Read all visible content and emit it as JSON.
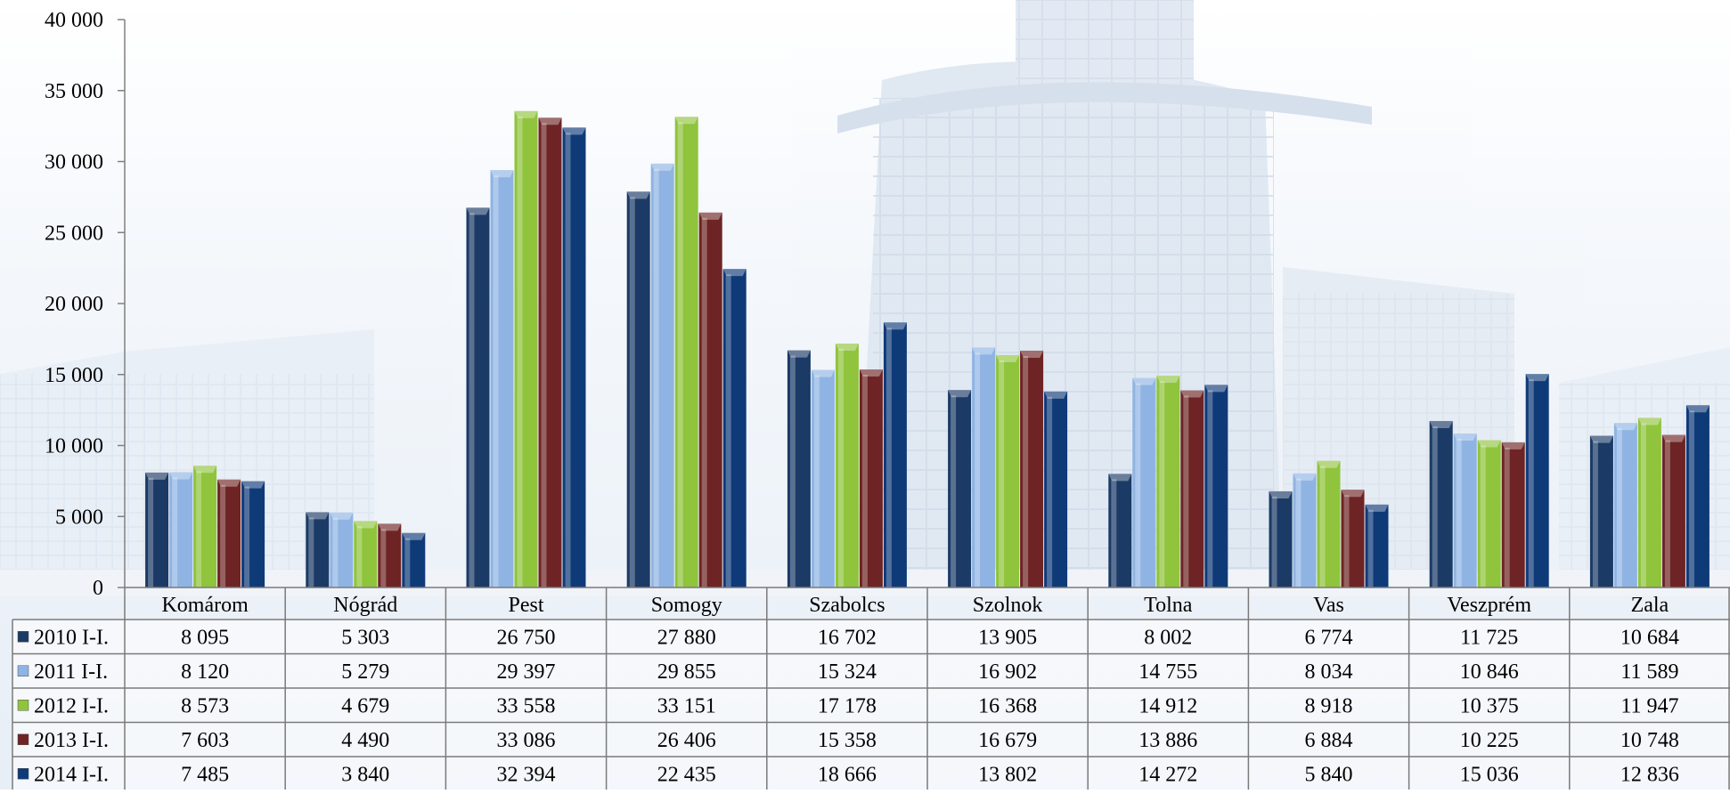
{
  "chart_data": {
    "type": "bar",
    "categories": [
      "Komárom",
      "Nógrád",
      "Pest",
      "Somogy",
      "Szabolcs",
      "Szolnok",
      "Tolna",
      "Vas",
      "Veszprém",
      "Zala"
    ],
    "series": [
      {
        "name": "2010 I-I.",
        "color": "#1b3a66",
        "values": [
          8095,
          5303,
          26750,
          27880,
          16702,
          13905,
          8002,
          6774,
          11725,
          10684
        ]
      },
      {
        "name": "2011 I-I.",
        "color": "#8fb4e3",
        "values": [
          8120,
          5279,
          29397,
          29855,
          15324,
          16902,
          14755,
          8034,
          10846,
          11589
        ]
      },
      {
        "name": "2012 I-I.",
        "color": "#8fc43c",
        "values": [
          8573,
          4679,
          33558,
          33151,
          17178,
          16368,
          14912,
          8918,
          10375,
          11947
        ]
      },
      {
        "name": "2013 I-I.",
        "color": "#6e2424",
        "values": [
          7603,
          4490,
          33086,
          26406,
          15358,
          16679,
          13886,
          6884,
          10225,
          10748
        ]
      },
      {
        "name": "2014 I-I.",
        "color": "#0f3a78",
        "values": [
          7485,
          3840,
          32394,
          22435,
          18666,
          13802,
          14272,
          5840,
          15036,
          12836
        ]
      }
    ],
    "table_values": [
      [
        "8 095",
        "5 303",
        "26 750",
        "27 880",
        "16 702",
        "13 905",
        "8 002",
        "6 774",
        "11 725",
        "10 684"
      ],
      [
        "8 120",
        "5 279",
        "29 397",
        "29 855",
        "15 324",
        "16 902",
        "14 755",
        "8 034",
        "10 846",
        "11 589"
      ],
      [
        "8 573",
        "4 679",
        "33 558",
        "33 151",
        "17 178",
        "16 368",
        "14 912",
        "8 918",
        "10 375",
        "11 947"
      ],
      [
        "7 603",
        "4 490",
        "33 086",
        "26 406",
        "15 358",
        "16 679",
        "13 886",
        "6 884",
        "10 225",
        "10 748"
      ],
      [
        "7 485",
        "3 840",
        "32 394",
        "22 435",
        "18 666",
        "13 802",
        "14 272",
        "5 840",
        "15 036",
        "12 836"
      ]
    ],
    "y_ticks": [
      0,
      5000,
      10000,
      15000,
      20000,
      25000,
      30000,
      35000,
      40000
    ],
    "y_tick_labels": [
      "0",
      "5 000",
      "10 000",
      "15 000",
      "20 000",
      "25 000",
      "30 000",
      "35 000",
      "40 000"
    ],
    "ylim": [
      0,
      40000
    ],
    "grid": false,
    "legend": "data table rows (left)",
    "title": "",
    "xlabel": "",
    "ylabel": "",
    "background": "faded building photograph"
  }
}
